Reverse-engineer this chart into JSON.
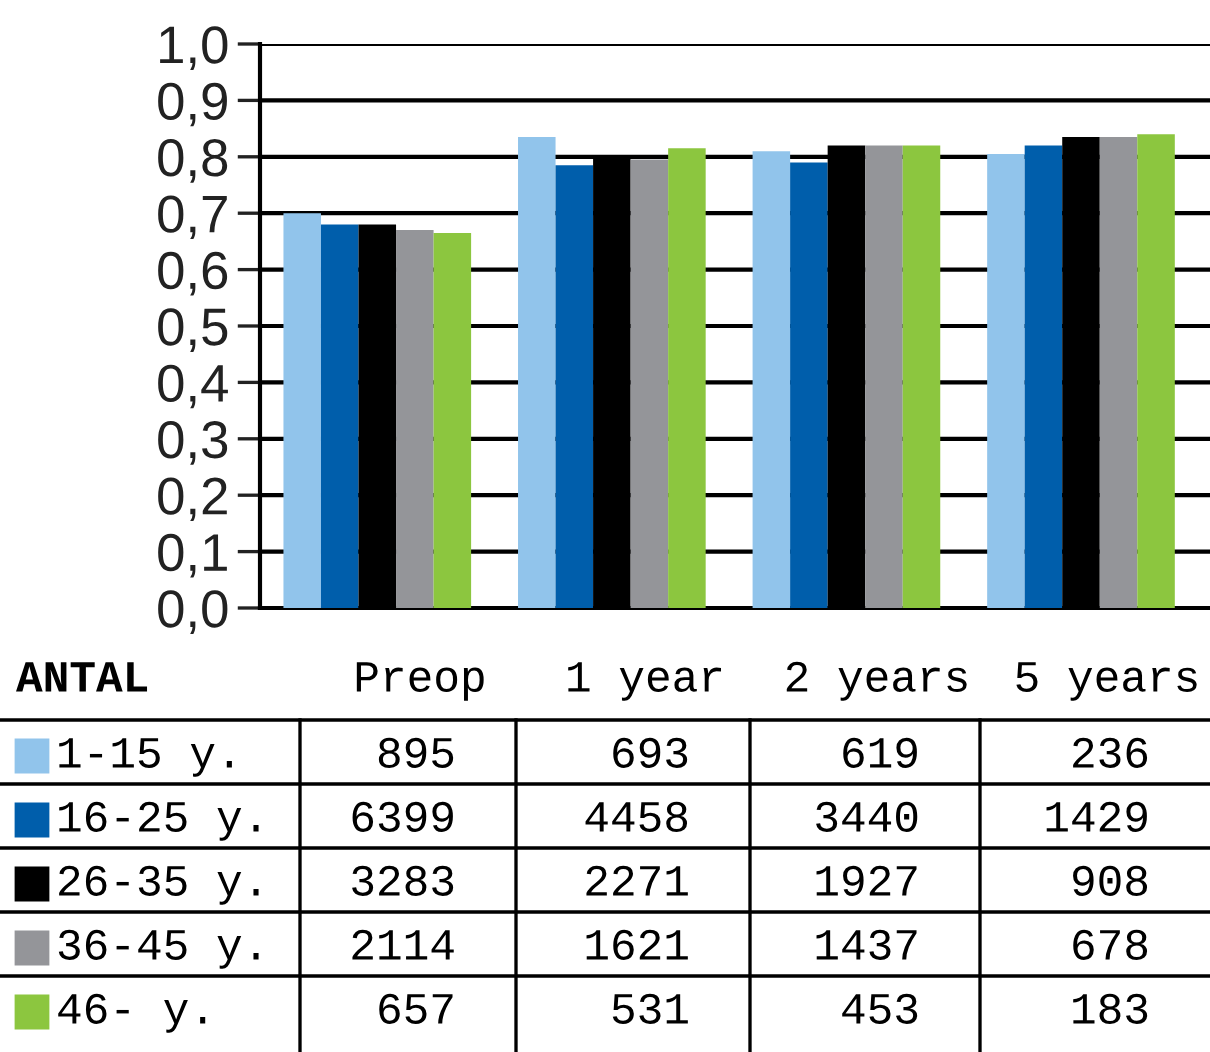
{
  "chart_data": {
    "type": "bar",
    "categories": [
      "Preop",
      "1 year",
      "2 years",
      "5 years"
    ],
    "series": [
      {
        "name": "1-15 y.",
        "color": "#91c4eb",
        "values": [
          0.7,
          0.835,
          0.81,
          0.805
        ]
      },
      {
        "name": "16-25 y.",
        "color": "#005eab",
        "values": [
          0.68,
          0.785,
          0.79,
          0.82
        ]
      },
      {
        "name": "26-35 y.",
        "color": "#000000",
        "values": [
          0.68,
          0.8,
          0.82,
          0.835
        ]
      },
      {
        "name": "36-45 y.",
        "color": "#949599",
        "values": [
          0.67,
          0.795,
          0.82,
          0.835
        ]
      },
      {
        "name": "46- y.",
        "color": "#8cc63f",
        "values": [
          0.665,
          0.815,
          0.82,
          0.84
        ]
      }
    ],
    "ylim": [
      0,
      1.0
    ],
    "yticks": [
      {
        "value": 0,
        "label": "0,0"
      },
      {
        "value": 0.1,
        "label": "0,1"
      },
      {
        "value": 0.2,
        "label": "0,2"
      },
      {
        "value": 0.3,
        "label": "0,3"
      },
      {
        "value": 0.4,
        "label": "0,4"
      },
      {
        "value": 0.5,
        "label": "0,5"
      },
      {
        "value": 0.6,
        "label": "0,6"
      },
      {
        "value": 0.7,
        "label": "0,7"
      },
      {
        "value": 0.8,
        "label": "0,8"
      },
      {
        "value": 0.9,
        "label": "0,9"
      },
      {
        "value": 1.0,
        "label": "1,0"
      }
    ],
    "grid": "y",
    "legend": "bottom",
    "annotations": [
      "ANTAL",
      "895",
      "693",
      "619",
      "236",
      "6399",
      "4458",
      "3440",
      "1429",
      "3283",
      "2271",
      "1927",
      "908",
      "2114",
      "1621",
      "1437",
      "678",
      "657",
      "531",
      "453",
      "183"
    ]
  }
}
